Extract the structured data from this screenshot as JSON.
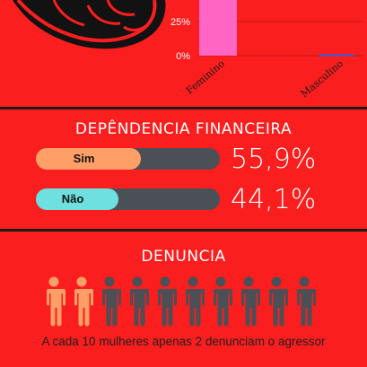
{
  "chart_data": {
    "type": "bar",
    "categories": [
      "Feminino",
      "Masculino"
    ],
    "y_tick_labels": [
      "25%",
      "0%"
    ],
    "series": [
      {
        "values": [
          null,
          1
        ],
        "colors": [
          "#ff66c4",
          "#3b5bdb"
        ]
      }
    ],
    "note": "Feminino bar extends above the visible crop"
  },
  "colors": {
    "background": "#fa1e1e",
    "feminino": "#ff66c4",
    "masculino": "#3b5bdb",
    "sim": "#ff9f68",
    "nao": "#6ee0e0",
    "track": "#4b4f56",
    "people_highlight": "#ff9f68",
    "people_default": "#4b4f56"
  },
  "dependencia": {
    "title": "DEPÊNDENCIA FINANCEIRA",
    "items": [
      {
        "label": "Sim",
        "value_text": "55,9%",
        "value": 55.9
      },
      {
        "label": "Não",
        "value_text": "44,1%",
        "value": 44.1
      }
    ]
  },
  "denuncia": {
    "title": "DENUNCIA",
    "total": 10,
    "highlighted": 2,
    "caption": "A cada 10 mulheres apenas 2 denunciam o agressor"
  },
  "icons": {
    "fist": "raised-fist-icon",
    "person": "person-icon"
  }
}
